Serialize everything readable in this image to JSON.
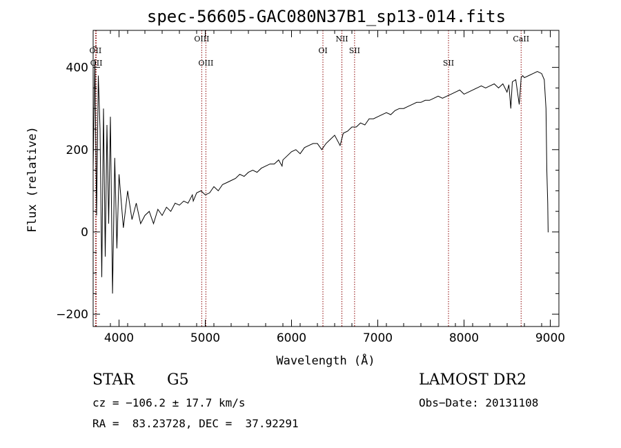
{
  "chart_data": {
    "type": "line",
    "title": "spec-56605-GAC080N37B1_sp13-014.fits",
    "xlabel": "Wavelength (Å)",
    "ylabel": "Flux (relative)",
    "xlim": [
      3700,
      9100
    ],
    "ylim": [
      -230,
      490
    ],
    "xticks": [
      4000,
      5000,
      6000,
      7000,
      8000,
      9000
    ],
    "yticks": [
      -200,
      0,
      200,
      400
    ],
    "grid": false,
    "series": [
      {
        "color": "#000000",
        "x": [
          3700,
          3720,
          3740,
          3760,
          3780,
          3800,
          3820,
          3840,
          3860,
          3880,
          3900,
          3925,
          3950,
          3975,
          4000,
          4050,
          4100,
          4150,
          4200,
          4250,
          4300,
          4350,
          4400,
          4450,
          4500,
          4550,
          4600,
          4650,
          4700,
          4750,
          4800,
          4850,
          4861,
          4900,
          4950,
          5000,
          5050,
          5100,
          5150,
          5200,
          5250,
          5300,
          5350,
          5400,
          5450,
          5500,
          5550,
          5600,
          5650,
          5700,
          5750,
          5800,
          5850,
          5890,
          5900,
          5950,
          6000,
          6050,
          6100,
          6150,
          6200,
          6250,
          6300,
          6350,
          6400,
          6450,
          6500,
          6563,
          6600,
          6650,
          6700,
          6750,
          6800,
          6850,
          6900,
          6950,
          7000,
          7050,
          7100,
          7150,
          7200,
          7250,
          7300,
          7350,
          7400,
          7450,
          7500,
          7550,
          7600,
          7650,
          7700,
          7750,
          7800,
          7850,
          7900,
          7950,
          8000,
          8050,
          8100,
          8150,
          8200,
          8250,
          8300,
          8350,
          8400,
          8450,
          8498,
          8520,
          8542,
          8560,
          8600,
          8640,
          8662,
          8680,
          8700,
          8750,
          8800,
          8850,
          8900,
          8930,
          8950,
          8960,
          8970,
          8975,
          8980
        ],
        "y": [
          150,
          420,
          40,
          380,
          250,
          -110,
          300,
          -60,
          260,
          20,
          280,
          -150,
          180,
          -40,
          140,
          10,
          100,
          30,
          70,
          20,
          40,
          50,
          20,
          55,
          40,
          60,
          50,
          70,
          65,
          75,
          70,
          90,
          75,
          95,
          100,
          90,
          95,
          110,
          100,
          115,
          120,
          125,
          130,
          140,
          135,
          145,
          150,
          145,
          155,
          160,
          165,
          165,
          175,
          160,
          175,
          185,
          195,
          200,
          190,
          205,
          210,
          215,
          215,
          200,
          215,
          225,
          235,
          210,
          240,
          245,
          255,
          255,
          265,
          260,
          275,
          275,
          280,
          285,
          290,
          285,
          295,
          300,
          300,
          305,
          310,
          315,
          315,
          320,
          320,
          325,
          330,
          325,
          330,
          335,
          340,
          345,
          335,
          340,
          345,
          350,
          355,
          350,
          355,
          360,
          350,
          360,
          340,
          358,
          300,
          365,
          370,
          310,
          375,
          380,
          375,
          380,
          385,
          390,
          385,
          370,
          300,
          150,
          70,
          0,
          0
        ]
      }
    ],
    "lines": [
      {
        "label": "OII",
        "x": 3727,
        "row": 1
      },
      {
        "label": "OII",
        "x": 3737,
        "row": 2
      },
      {
        "label": "OIII",
        "x": 4959,
        "row": 0
      },
      {
        "label": "OIII",
        "x": 5007,
        "row": 2
      },
      {
        "label": "OI",
        "x": 6364,
        "row": 1
      },
      {
        "label": "NII",
        "x": 6584,
        "row": 0
      },
      {
        "label": "SII",
        "x": 6731,
        "row": 1
      },
      {
        "label": "SII",
        "x": 7820,
        "row": 2
      },
      {
        "label": "CaII",
        "x": 8662,
        "row": 0
      }
    ],
    "line_color": "#8b0000"
  },
  "info": {
    "object_class": "STAR",
    "subclass": "G5",
    "survey": "LAMOST DR2",
    "cz": "cz = −106.2 ± 17.7 km/s",
    "obs_date": "Obs−Date: 20131108",
    "coords": "RA =  83.23728, DEC =  37.92291"
  }
}
